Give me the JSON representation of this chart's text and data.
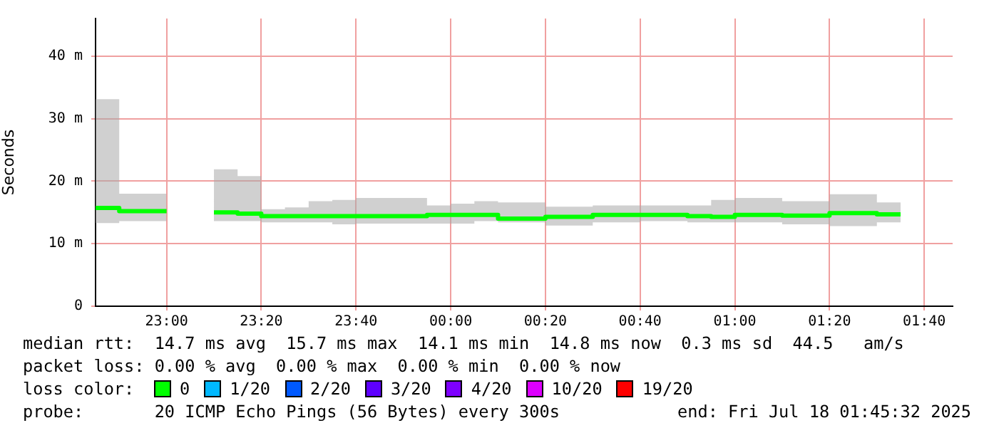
{
  "chart_data": {
    "type": "step",
    "ylabel": "Seconds",
    "x": [
      "2025-07-17T22:45",
      "2025-07-17T22:50",
      "2025-07-17T22:55",
      "2025-07-17T23:00",
      "2025-07-17T23:05",
      "2025-07-17T23:10",
      "2025-07-17T23:15",
      "2025-07-17T23:20",
      "2025-07-17T23:25",
      "2025-07-17T23:30",
      "2025-07-17T23:35",
      "2025-07-17T23:40",
      "2025-07-17T23:45",
      "2025-07-17T23:50",
      "2025-07-17T23:55",
      "2025-07-18T00:00",
      "2025-07-18T00:05",
      "2025-07-18T00:10",
      "2025-07-18T00:15",
      "2025-07-18T00:20",
      "2025-07-18T00:25",
      "2025-07-18T00:30",
      "2025-07-18T00:35",
      "2025-07-18T00:40",
      "2025-07-18T00:45",
      "2025-07-18T00:50",
      "2025-07-18T00:55",
      "2025-07-18T01:00",
      "2025-07-18T01:05",
      "2025-07-18T01:10",
      "2025-07-18T01:15",
      "2025-07-18T01:20",
      "2025-07-18T01:25",
      "2025-07-18T01:30",
      "2025-07-18T01:35"
    ],
    "series": [
      {
        "name": "0",
        "color": "#00ff00",
        "values": [
          15.7,
          15.2,
          15.2,
          null,
          null,
          15.0,
          14.8,
          14.4,
          14.4,
          14.4,
          14.4,
          14.4,
          14.4,
          14.4,
          14.6,
          14.6,
          14.6,
          14.0,
          14.0,
          14.3,
          14.3,
          14.6,
          14.6,
          14.6,
          14.6,
          14.4,
          14.3,
          14.6,
          14.6,
          14.5,
          14.5,
          14.9,
          14.9,
          14.7,
          14.7
        ],
        "upper": [
          33.1,
          18.0,
          18.0,
          null,
          null,
          21.9,
          20.8,
          15.5,
          15.8,
          16.8,
          17.0,
          17.3,
          17.3,
          17.3,
          16.1,
          16.4,
          16.8,
          16.6,
          16.6,
          15.9,
          15.9,
          16.1,
          16.1,
          16.1,
          16.1,
          16.1,
          17.0,
          17.3,
          17.3,
          16.8,
          16.8,
          17.9,
          17.9,
          16.6,
          16.6
        ],
        "lower": [
          13.3,
          13.6,
          13.6,
          null,
          null,
          13.6,
          13.6,
          13.4,
          13.4,
          13.4,
          13.1,
          13.2,
          13.2,
          13.2,
          13.2,
          13.2,
          13.6,
          13.4,
          13.4,
          12.9,
          12.9,
          13.4,
          13.4,
          13.6,
          13.6,
          13.4,
          13.4,
          13.4,
          13.4,
          13.1,
          13.1,
          12.8,
          12.8,
          13.4,
          13.4
        ]
      },
      {
        "name": "1/20",
        "color": "#00b8ff",
        "values": [
          null,
          null,
          null,
          null,
          null,
          null,
          null,
          null,
          null,
          null,
          null,
          null,
          null,
          null,
          null,
          null,
          null,
          null,
          null,
          null,
          null,
          null,
          null,
          null,
          null,
          null,
          null,
          null,
          null,
          null,
          null,
          null,
          null,
          null,
          null
        ]
      },
      {
        "name": "2/20",
        "color": "#0059ff",
        "values": [
          null,
          null,
          null,
          null,
          null,
          null,
          null,
          null,
          null,
          null,
          null,
          null,
          null,
          null,
          null,
          null,
          null,
          null,
          null,
          null,
          null,
          null,
          null,
          null,
          null,
          null,
          null,
          null,
          null,
          null,
          null,
          null,
          null,
          null,
          null
        ]
      },
      {
        "name": "3/20",
        "color": "#5e00ff",
        "values": [
          null,
          null,
          null,
          null,
          null,
          null,
          null,
          null,
          null,
          null,
          null,
          null,
          null,
          null,
          null,
          null,
          null,
          null,
          null,
          null,
          null,
          null,
          null,
          null,
          null,
          null,
          null,
          null,
          null,
          null,
          null,
          null,
          null,
          null,
          null
        ]
      },
      {
        "name": "4/20",
        "color": "#7e00ff",
        "values": [
          null,
          null,
          null,
          null,
          null,
          null,
          null,
          null,
          null,
          null,
          null,
          null,
          null,
          null,
          null,
          null,
          null,
          null,
          null,
          null,
          null,
          null,
          null,
          null,
          null,
          null,
          null,
          null,
          null,
          null,
          null,
          null,
          null,
          null,
          null
        ]
      },
      {
        "name": "10/20",
        "color": "#dd00ff",
        "values": [
          null,
          null,
          null,
          null,
          null,
          null,
          null,
          null,
          null,
          null,
          null,
          null,
          null,
          null,
          null,
          null,
          null,
          null,
          null,
          null,
          null,
          null,
          null,
          null,
          null,
          null,
          null,
          null,
          null,
          null,
          null,
          null,
          null,
          null,
          null
        ]
      },
      {
        "name": "19/20",
        "color": "#ff0000",
        "values": [
          null,
          null,
          null,
          null,
          null,
          null,
          null,
          null,
          null,
          null,
          null,
          null,
          null,
          null,
          null,
          null,
          null,
          null,
          null,
          null,
          null,
          null,
          null,
          null,
          null,
          null,
          null,
          null,
          null,
          null,
          null,
          null,
          null,
          null,
          null
        ]
      }
    ],
    "xlim": [
      "2025-07-17T22:45",
      "2025-07-18T01:46"
    ],
    "xticks": [
      {
        "value": "2025-07-17T23:00",
        "label": "23:00"
      },
      {
        "value": "2025-07-17T23:20",
        "label": "23:20"
      },
      {
        "value": "2025-07-17T23:40",
        "label": "23:40"
      },
      {
        "value": "2025-07-18T00:00",
        "label": "00:00"
      },
      {
        "value": "2025-07-18T00:20",
        "label": "00:20"
      },
      {
        "value": "2025-07-18T00:40",
        "label": "00:40"
      },
      {
        "value": "2025-07-18T01:00",
        "label": "01:00"
      },
      {
        "value": "2025-07-18T01:20",
        "label": "01:20"
      },
      {
        "value": "2025-07-18T01:40",
        "label": "01:40"
      }
    ],
    "ylim": [
      0,
      46
    ],
    "yticks": [
      0,
      {
        "value": 10,
        "label": "10 m"
      },
      {
        "value": 20,
        "label": "20 m"
      },
      {
        "value": 30,
        "label": "30 m"
      },
      {
        "value": 40,
        "label": "40 m"
      }
    ],
    "grid": true,
    "legend": "bottom",
    "annotations": [
      "median rtt:  14.7 ms avg  15.7 ms max  14.1 ms min  14.8 ms now  0.3 ms sd  44.5   am/s",
      "packet loss: 0.00 % avg  0.00 % max  0.00 % min  0.00 % now",
      "loss color:",
      "probe:       20 ICMP Echo Pings (56 Bytes) every 300s",
      "end: Fri Jul 18 01:45:32 2025"
    ]
  }
}
